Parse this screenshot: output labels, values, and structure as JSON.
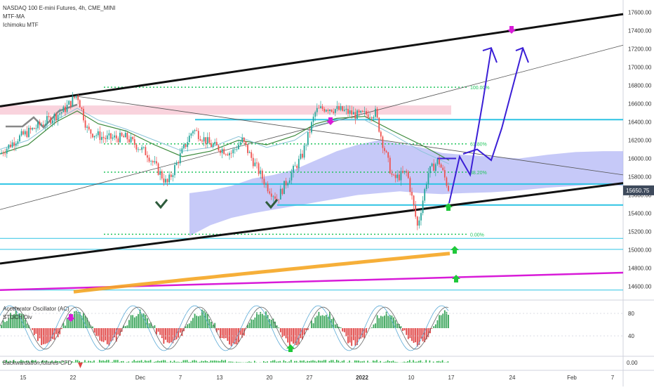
{
  "header": {
    "symbol": "NASDAQ 100 E-mini Futures, 4h, CME_MINI",
    "indicators": [
      "MTF-MA",
      "Ichimoku MTF"
    ]
  },
  "panes": {
    "oscillator_title": "Accelerator Oscillator (AC)",
    "stoch_title": "STOCH Div",
    "bottom_title": "Backwardation,futures-CFD",
    "osc_ticks": [
      "80",
      "40"
    ],
    "bottom_tick": "0.00"
  },
  "price_label": "15650.75",
  "colors": {
    "up": "#26a69a",
    "down": "#ef5350",
    "cloud": "#b3b7f5",
    "cyan_level": "#2ec4e4",
    "green_dotted": "#22c55e",
    "magenta": "#d81bd8",
    "orange": "#f5a623",
    "projection": "#3b1fd6",
    "resistance_zone": "#f8c8d4",
    "price_label_bg": "#3e4a5c"
  },
  "chart_data": {
    "type": "line",
    "title": "NASDAQ 100 E-mini Futures, 4h, CME_MINI",
    "xlabel": "",
    "ylabel": "",
    "x_tick_labels": [
      "15",
      "22",
      "Dec",
      "7",
      "13",
      "20",
      "27",
      "2022",
      "10",
      "17",
      "24",
      "Feb",
      "7"
    ],
    "y_tick_labels": [
      "17600.00",
      "17400.00",
      "17200.00",
      "17000.00",
      "16800.00",
      "16600.00",
      "16400.00",
      "16200.00",
      "16000.00",
      "15800.00",
      "15600.00",
      "15400.00",
      "15200.00",
      "15000.00",
      "14800.00",
      "14600.00"
    ],
    "ylim": [
      14550,
      17700
    ],
    "grid": false,
    "fib_levels": [
      {
        "label": "0.00%",
        "value": 15170
      },
      {
        "label": "38.20%",
        "value": 15850
      },
      {
        "label": "61.80%",
        "value": 16160
      },
      {
        "label": "100.00%",
        "value": 16780
      }
    ],
    "last_price": 15650.75
  }
}
